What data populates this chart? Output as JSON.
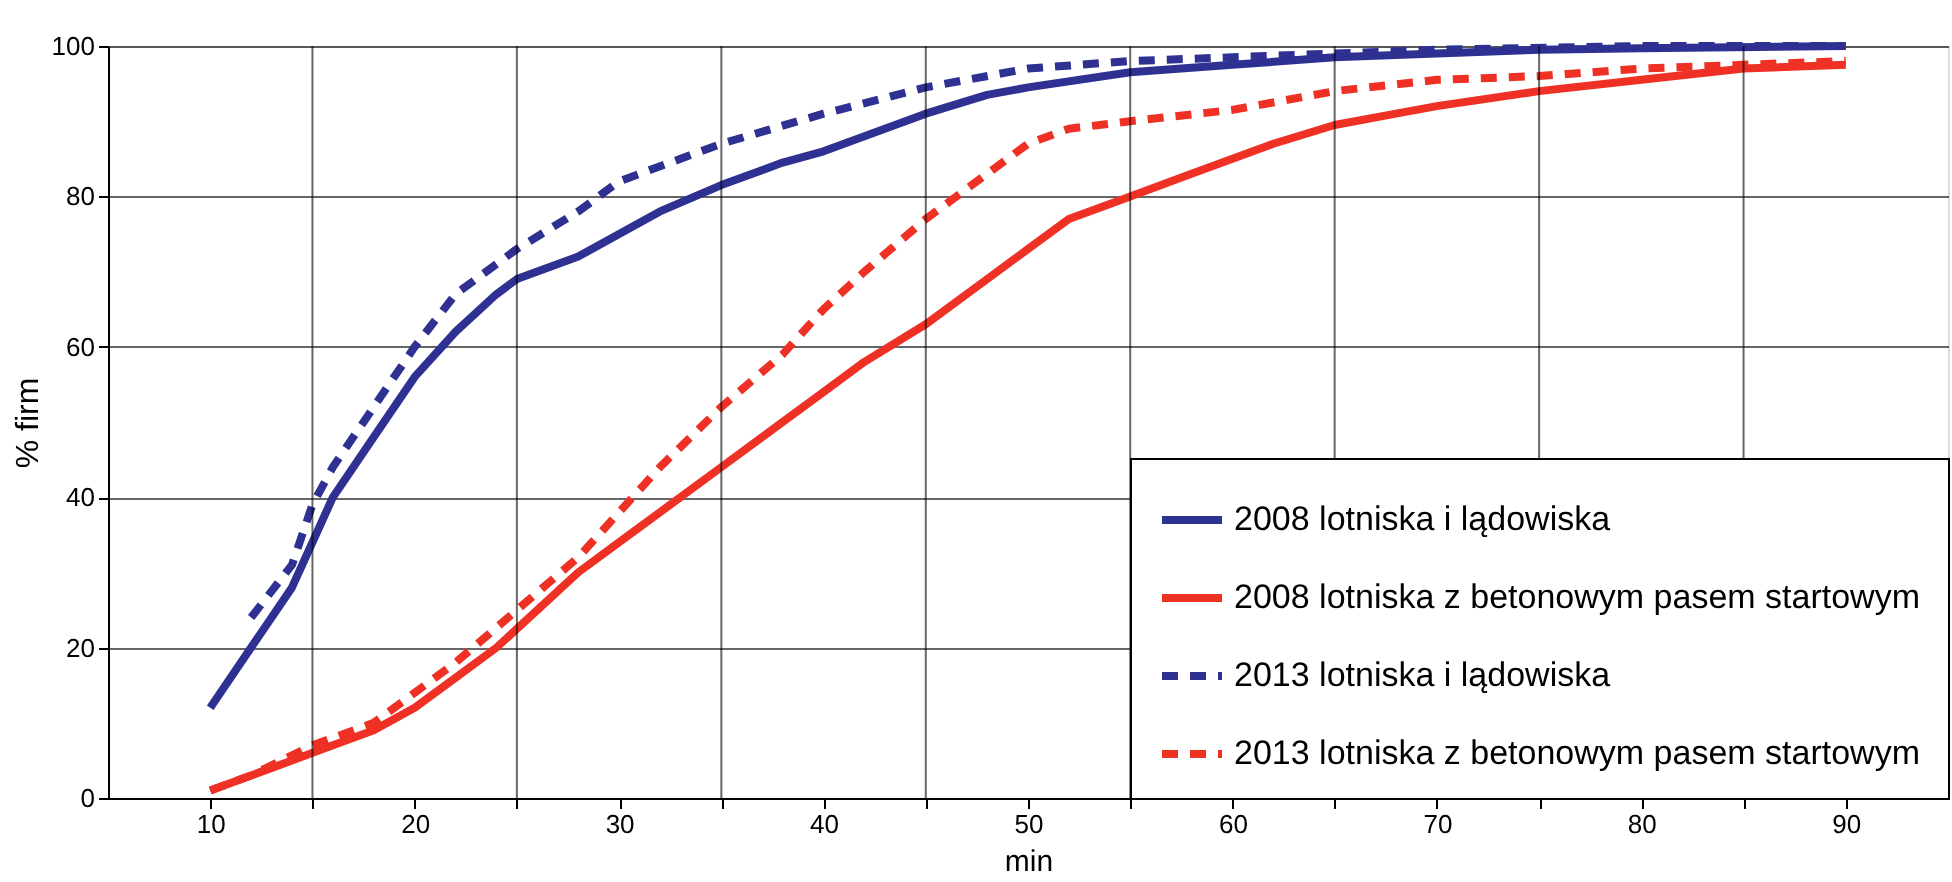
{
  "chart_data": {
    "type": "line",
    "xlabel": "min",
    "ylabel": "% firm",
    "xlim": [
      5,
      95
    ],
    "xticks": [
      10,
      {
        "value": 15,
        "label": null
      },
      20,
      {
        "value": 25,
        "label": null
      },
      30,
      {
        "value": 35,
        "label": null
      },
      40,
      {
        "value": 45,
        "label": null
      },
      50,
      {
        "value": 55,
        "label": null
      },
      60,
      {
        "value": 65,
        "label": null
      },
      70,
      {
        "value": 75,
        "label": null
      },
      80,
      {
        "value": 85,
        "label": null
      },
      90
    ],
    "ylim": [
      0,
      100
    ],
    "yticks": [
      0,
      20,
      40,
      60,
      80,
      100
    ],
    "grid": true,
    "legend": "bottom right",
    "marker": "none",
    "series": [
      {
        "name": "2008 lotniska i lądowiska",
        "color": "#2e3192",
        "line_style": "solid",
        "x": [
          10,
          12,
          14,
          15,
          16,
          18,
          20,
          22,
          24,
          25,
          28,
          30,
          32,
          35,
          38,
          40,
          42,
          45,
          48,
          50,
          55,
          60,
          65,
          70,
          75,
          80,
          90
        ],
        "values": [
          12,
          20,
          28,
          34,
          40,
          48,
          56,
          62,
          67,
          69,
          72,
          75,
          78,
          81.5,
          84.5,
          86,
          88,
          91,
          93.5,
          94.5,
          96.5,
          97.5,
          98.5,
          99,
          99.5,
          99.7,
          100
        ]
      },
      {
        "name": "2008 lotniska z betonowym pasem startowym",
        "color": "#ee3124",
        "line_style": "solid",
        "x": [
          10,
          12,
          14,
          16,
          18,
          20,
          22,
          24,
          26,
          28,
          30,
          32,
          35,
          38,
          40,
          42,
          45,
          48,
          50,
          52,
          55,
          58,
          60,
          62,
          65,
          68,
          70,
          75,
          80,
          85,
          90
        ],
        "values": [
          1,
          3,
          5,
          7,
          9,
          12,
          16,
          20,
          25,
          30,
          34,
          38,
          44,
          50,
          54,
          58,
          63,
          69,
          73,
          77,
          80,
          83,
          85,
          87,
          89.5,
          91,
          92,
          94,
          95.5,
          97,
          97.5
        ]
      },
      {
        "name": "2013 lotniska i lądowiska",
        "color": "#2e3192",
        "line_style": "dashed",
        "x": [
          12,
          14,
          15,
          16,
          18,
          20,
          22,
          25,
          28,
          30,
          35,
          40,
          45,
          50,
          55,
          60,
          65,
          70,
          80,
          90
        ],
        "values": [
          24,
          31,
          39,
          44,
          52,
          60,
          67,
          73,
          78,
          82,
          87,
          91,
          94.5,
          97,
          98,
          98.5,
          99,
          99.5,
          100,
          100
        ]
      },
      {
        "name": "2013 lotniska z betonowym pasem startowym",
        "color": "#ee3124",
        "line_style": "dashed",
        "x": [
          10,
          12,
          15,
          18,
          20,
          22,
          25,
          28,
          30,
          32,
          35,
          38,
          40,
          42,
          45,
          48,
          50,
          52,
          55,
          60,
          65,
          70,
          75,
          80,
          85,
          90
        ],
        "values": [
          1,
          3,
          7,
          10,
          14,
          18,
          25,
          32,
          38,
          44,
          52,
          59,
          65,
          70,
          77,
          83,
          87,
          89,
          90,
          91.5,
          94,
          95.5,
          96,
          97,
          97.5,
          98
        ]
      }
    ]
  }
}
